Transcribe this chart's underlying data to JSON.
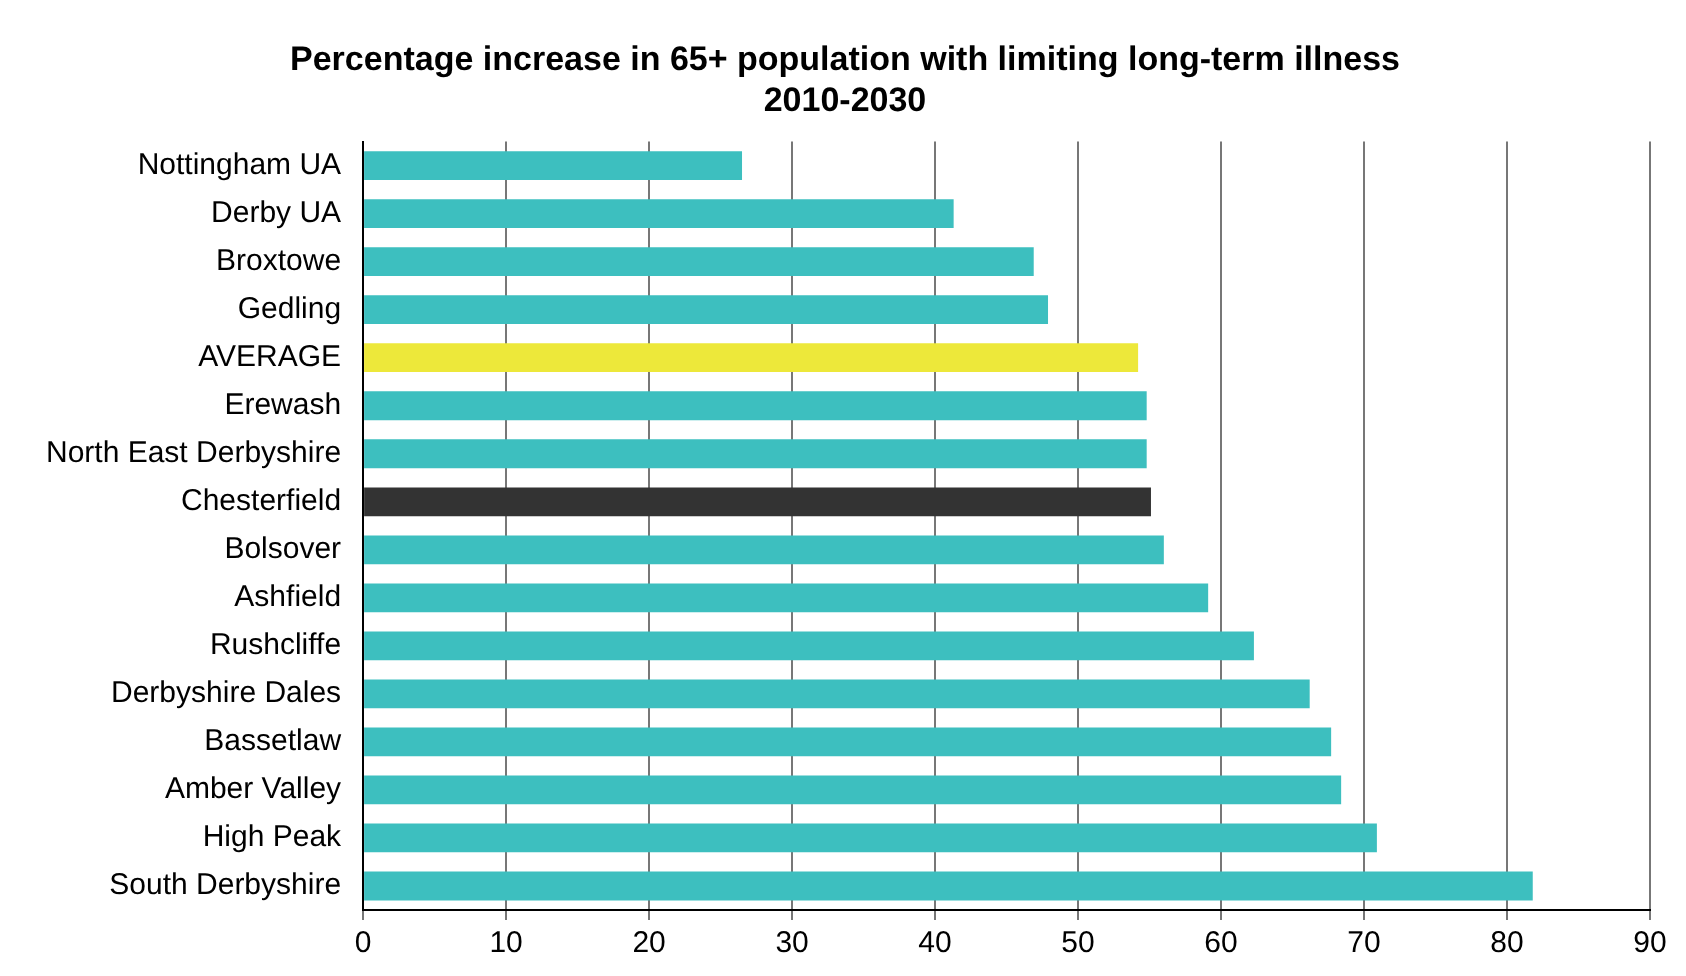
{
  "chart_data": {
    "type": "bar",
    "orientation": "horizontal",
    "title": "Percentage increase in 65+ population with limiting long-term illness 2010-2030",
    "categories": [
      "Nottingham UA",
      "Derby UA",
      "Broxtowe",
      "Gedling",
      "AVERAGE",
      "Erewash",
      "North East Derbyshire",
      "Chesterfield",
      "Bolsover",
      "Ashfield",
      "Rushcliffe",
      "Derbyshire Dales",
      "Bassetlaw",
      "Amber Valley",
      "High Peak",
      "South Derbyshire"
    ],
    "values": [
      26.5,
      41.3,
      46.9,
      47.9,
      54.2,
      54.8,
      54.8,
      55.1,
      56.0,
      59.1,
      62.3,
      66.2,
      67.7,
      68.4,
      70.9,
      81.8
    ],
    "colors": [
      "#3dbfbf",
      "#3dbfbf",
      "#3dbfbf",
      "#3dbfbf",
      "#ede83a",
      "#3dbfbf",
      "#3dbfbf",
      "#333333",
      "#3dbfbf",
      "#3dbfbf",
      "#3dbfbf",
      "#3dbfbf",
      "#3dbfbf",
      "#3dbfbf",
      "#3dbfbf",
      "#3dbfbf"
    ],
    "xlim": [
      0,
      90
    ],
    "xticks": [
      0,
      10,
      20,
      30,
      40,
      50,
      60,
      70,
      80,
      90
    ],
    "grid": "x"
  }
}
